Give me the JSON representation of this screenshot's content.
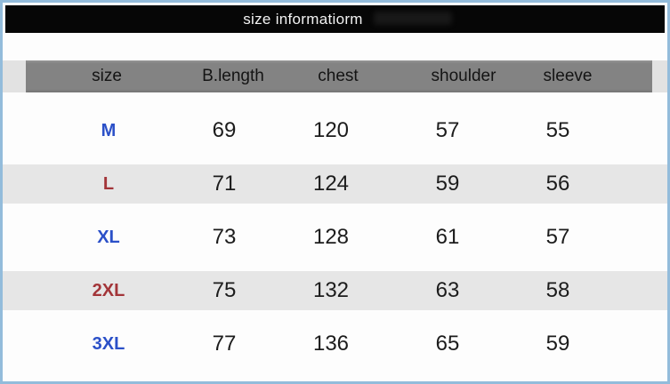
{
  "window": {
    "border_color_hex": "#93bcdb",
    "background_hex": "#fdfdfd"
  },
  "title_bar": {
    "text": "size informatiorm",
    "background_hex": "#060606",
    "text_color_hex": "#f2f2f2"
  },
  "table": {
    "columns": [
      "size",
      "B.length",
      "chest",
      "shoulder",
      "sleeve"
    ],
    "header_bar_color_hex": "#838383",
    "header_strip_color_hex": "#e2e2e2",
    "stripe_color_hex": "#e6e6e6",
    "size_colors": {
      "blue": "#2b50c8",
      "red": "#a33539"
    },
    "rows": [
      {
        "size": "M",
        "size_color": "#2b50c8",
        "values": [
          "69",
          "120",
          "57",
          "55"
        ]
      },
      {
        "size": "L",
        "size_color": "#a33539",
        "values": [
          "71",
          "124",
          "59",
          "56"
        ]
      },
      {
        "size": "XL",
        "size_color": "#2b50c8",
        "values": [
          "73",
          "128",
          "61",
          "57"
        ]
      },
      {
        "size": "2XL",
        "size_color": "#a33539",
        "values": [
          "75",
          "132",
          "63",
          "58"
        ]
      },
      {
        "size": "3XL",
        "size_color": "#2b50c8",
        "values": [
          "77",
          "136",
          "65",
          "59"
        ]
      }
    ]
  }
}
